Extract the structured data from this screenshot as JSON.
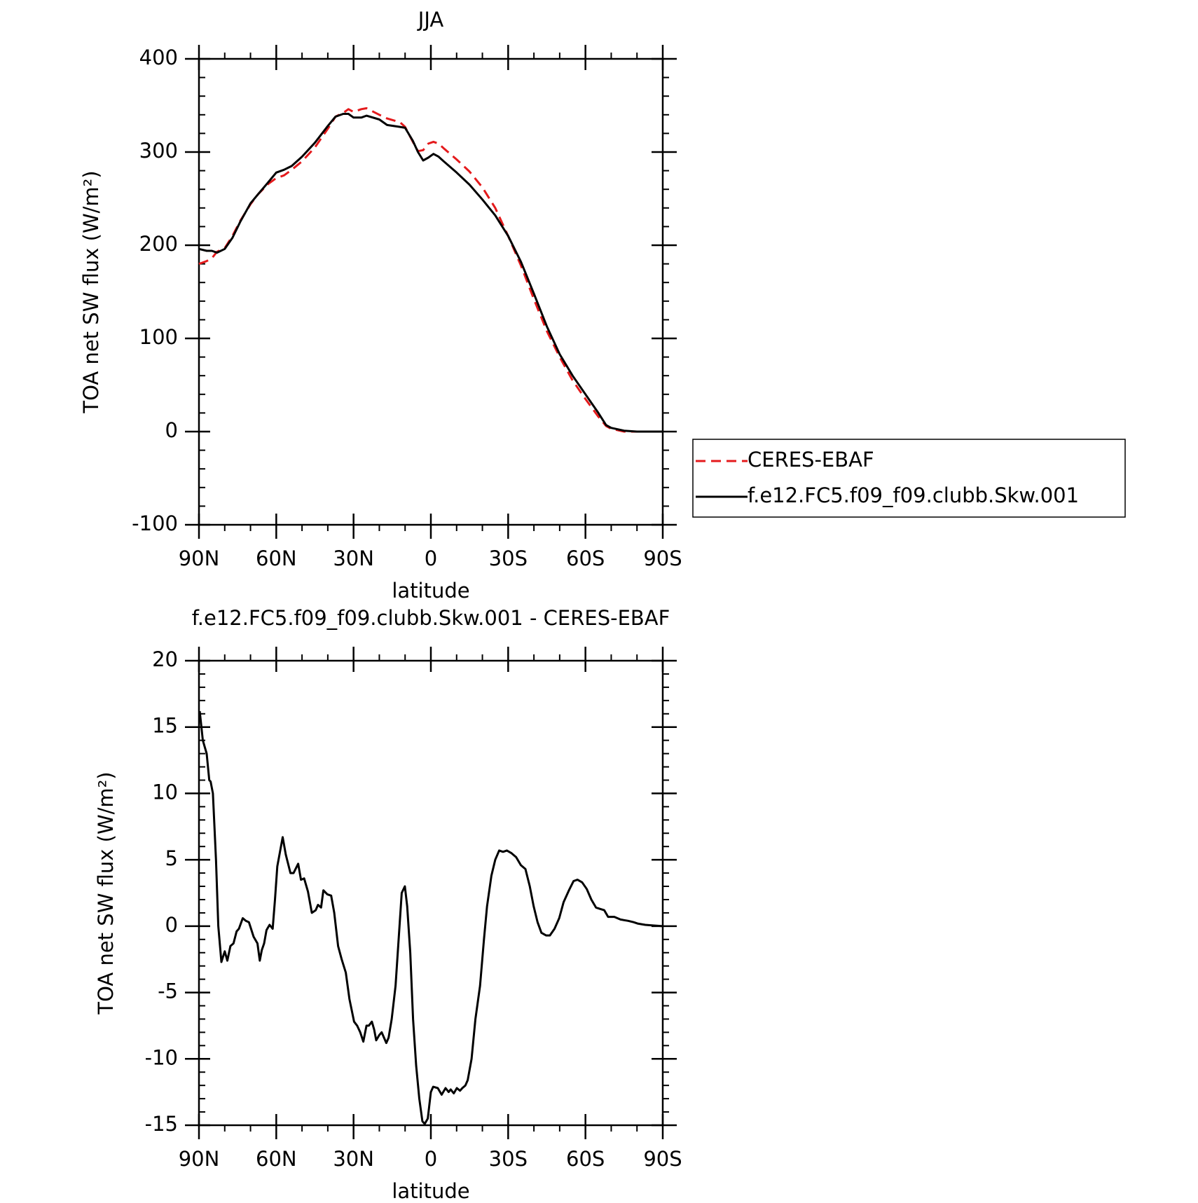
{
  "chart_data": [
    {
      "type": "line",
      "title": "JJA",
      "x_label": "latitude",
      "y_label": "TOA net SW flux (W/m²)",
      "xlim": [
        90,
        -90
      ],
      "xticks": [
        {
          "value": 90,
          "label": "90N"
        },
        {
          "value": 60,
          "label": "60N"
        },
        {
          "value": 30,
          "label": "30N"
        },
        0,
        {
          "value": -30,
          "label": "30S"
        },
        {
          "value": -60,
          "label": "60S"
        },
        {
          "value": -90,
          "label": "90S"
        }
      ],
      "ylim": [
        -100,
        400
      ],
      "yticks": [
        -100,
        0,
        100,
        200,
        300,
        400
      ],
      "legend": "right",
      "x": [
        90,
        87,
        85,
        83,
        80,
        77,
        74,
        70,
        67,
        63,
        60,
        57,
        54,
        50,
        45,
        40,
        37,
        34,
        32,
        30,
        27,
        25,
        20,
        17,
        12,
        10,
        7,
        5,
        3,
        1,
        -1,
        -3,
        -5,
        -10,
        -15,
        -20,
        -25,
        -30,
        -35,
        -40,
        -45,
        -50,
        -55,
        -60,
        -65,
        -68,
        -70,
        -75,
        -80,
        -85,
        -90
      ],
      "series": [
        {
          "name": "CERES-EBAF",
          "color": "#e41a1c",
          "dashed": true,
          "values": [
            180,
            183,
            186,
            193,
            197,
            210,
            226,
            244,
            255,
            266,
            272,
            275,
            281,
            290,
            305,
            325,
            338,
            342,
            346,
            343,
            346,
            347,
            340,
            336,
            332,
            327,
            311,
            301,
            302,
            309,
            311,
            309,
            304,
            292,
            279,
            262,
            240,
            210,
            178,
            142,
            108,
            80,
            55,
            35,
            16,
            6,
            3,
            0,
            0,
            0,
            0
          ]
        },
        {
          "name": "f.e12.FC5.f09_f09.clubb.Skw.001",
          "color": "#000000",
          "dashed": false,
          "values": [
            196,
            194,
            194,
            192,
            196,
            208,
            225,
            245,
            255,
            268,
            278,
            281,
            285,
            295,
            310,
            328,
            338,
            341,
            341,
            337,
            337,
            339,
            335,
            329,
            327,
            326,
            312,
            300,
            291,
            294,
            298,
            295,
            290,
            278,
            265,
            249,
            232,
            210,
            182,
            148,
            113,
            83,
            60,
            40,
            20,
            7,
            4,
            1,
            0,
            0,
            0
          ]
        }
      ]
    },
    {
      "type": "line",
      "title": "f.e12.FC5.f09_f09.clubb.Skw.001 - CERES-EBAF",
      "x_label": "latitude",
      "y_label": "TOA net SW flux (W/m²)",
      "xlim": [
        90,
        -90
      ],
      "xticks": [
        {
          "value": 90,
          "label": "90N"
        },
        {
          "value": 60,
          "label": "60N"
        },
        {
          "value": 30,
          "label": "30N"
        },
        0,
        {
          "value": -30,
          "label": "30S"
        },
        {
          "value": -60,
          "label": "60S"
        },
        {
          "value": -90,
          "label": "90S"
        }
      ],
      "ylim": [
        -15,
        20
      ],
      "yticks": [
        -15,
        -10,
        -5,
        0,
        5,
        10,
        15,
        20
      ],
      "x": [
        89.7,
        88.5,
        87,
        86,
        85.5,
        84.6,
        83.4,
        82.5,
        81.3,
        80,
        79,
        77.8,
        76.6,
        75.4,
        74.5,
        73,
        71.8,
        70.6,
        68.8,
        67.3,
        66.4,
        65.6,
        64.7,
        63.8,
        62.6,
        61.4,
        60.5,
        59.6,
        57.5,
        56.3,
        54.5,
        53.3,
        51.5,
        50.4,
        49.2,
        47.7,
        46.2,
        44.7,
        43.8,
        42.6,
        41.7,
        40.2,
        38.7,
        37.5,
        36,
        34.6,
        33,
        31.6,
        29.8,
        28.6,
        27.4,
        26.2,
        25,
        24.1,
        22.9,
        22,
        21.2,
        20,
        19.1,
        18.2,
        17.3,
        16.4,
        15.2,
        13.7,
        12.5,
        11.3,
        10.1,
        9.2,
        8,
        6.9,
        5.7,
        4.5,
        3.3,
        2.4,
        1.2,
        0,
        -0.9,
        -2.7,
        -4.2,
        -5.7,
        -6.9,
        -7.7,
        -8.9,
        -10.1,
        -11.3,
        -12.2,
        -13.4,
        -14.3,
        -15.8,
        -17.3,
        -19.1,
        -20.6,
        -21.8,
        -23.5,
        -25,
        -26.5,
        -28,
        -29.5,
        -31.3,
        -33.1,
        -34.9,
        -36.7,
        -38.4,
        -39.9,
        -41.4,
        -42.9,
        -44.7,
        -46.2,
        -48,
        -49.8,
        -51.5,
        -53.6,
        -55.4,
        -56.9,
        -58.7,
        -60.5,
        -62.3,
        -64.1,
        -65.6,
        -67.3,
        -68.8,
        -71.2,
        -73.6,
        -76.6,
        -78.7,
        -80.2,
        -83.2,
        -86.2,
        -90
      ],
      "series": [
        {
          "color": "#000000",
          "values": [
            16.2,
            14,
            13,
            11,
            10.9,
            10,
            5,
            0,
            -2.7,
            -1.9,
            -2.6,
            -1.5,
            -1.3,
            -0.4,
            -0.2,
            0.6,
            0.4,
            0.3,
            -0.8,
            -1.3,
            -2.6,
            -1.8,
            -1.3,
            -0.3,
            0.1,
            -0.2,
            2,
            4.5,
            6.7,
            5.4,
            4,
            4,
            4.7,
            3.5,
            3.6,
            2.6,
            1,
            1.2,
            1.6,
            1.4,
            2.7,
            2.4,
            2.3,
            1,
            -1.5,
            -2.5,
            -3.5,
            -5.5,
            -7.2,
            -7.5,
            -8,
            -8.7,
            -7.5,
            -7.5,
            -7.2,
            -7.8,
            -8.6,
            -8.2,
            -8,
            -8.4,
            -8.8,
            -8.4,
            -7,
            -4.5,
            -1,
            2.5,
            3,
            1.5,
            -2,
            -7,
            -10.5,
            -13,
            -14.7,
            -14.9,
            -14.5,
            -12.5,
            -12.1,
            -12.2,
            -12.7,
            -12.2,
            -12.5,
            -12.3,
            -12.6,
            -12.2,
            -12.4,
            -12.2,
            -12,
            -11.6,
            -10,
            -7,
            -4.5,
            -1,
            1.5,
            3.8,
            5,
            5.7,
            5.6,
            5.7,
            5.5,
            5.2,
            4.6,
            4.3,
            3,
            1.5,
            0.3,
            -0.5,
            -0.7,
            -0.7,
            -0.2,
            0.6,
            1.8,
            2.7,
            3.4,
            3.5,
            3.3,
            2.8,
            2,
            1.4,
            1.3,
            1.2,
            0.7,
            0.7,
            0.5,
            0.4,
            0.3,
            0.2,
            0.1,
            0.05,
            0
          ]
        }
      ]
    }
  ]
}
